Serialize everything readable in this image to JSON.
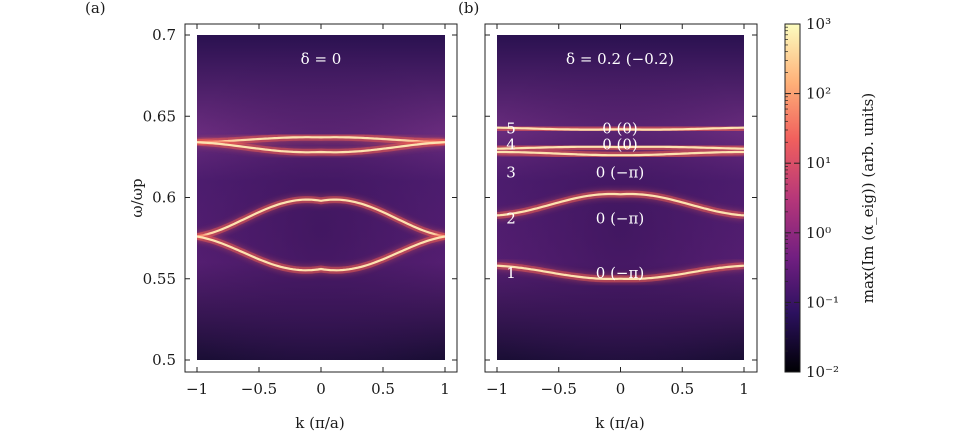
{
  "chart_data": [
    {
      "type": "heatmap",
      "panel_label": "(a)",
      "annotation": "δ = 0",
      "xlabel": "k (π/a)",
      "ylabel": "ω/ωp",
      "xlim": [
        -1,
        1
      ],
      "ylim": [
        0.5,
        0.7
      ],
      "xticks": [
        "−1",
        "−0.5",
        "0",
        "0.5",
        "1"
      ],
      "yticks": [
        "0.5",
        "0.55",
        "0.6",
        "0.65",
        "0.7"
      ],
      "bands": [
        {
          "name": "",
          "x": [
            -1,
            -0.5,
            0,
            0.5,
            1
          ],
          "y": [
            0.576,
            0.591,
            0.598,
            0.591,
            0.576
          ]
        },
        {
          "name": "",
          "x": [
            -1,
            -0.5,
            0,
            0.5,
            1
          ],
          "y": [
            0.576,
            0.562,
            0.556,
            0.562,
            0.576
          ]
        },
        {
          "name": "",
          "x": [
            -1,
            -0.5,
            0,
            0.5,
            1
          ],
          "y": [
            0.634,
            0.636,
            0.637,
            0.636,
            0.634
          ]
        },
        {
          "name": "",
          "x": [
            -1,
            -0.5,
            0,
            0.5,
            1
          ],
          "y": [
            0.634,
            0.63,
            0.628,
            0.63,
            0.634
          ]
        }
      ]
    },
    {
      "type": "heatmap",
      "panel_label": "(b)",
      "annotation": "δ = 0.2 (−0.2)",
      "xlabel": "k (π/a)",
      "ylabel": "",
      "xlim": [
        -1,
        1
      ],
      "ylim": [
        0.5,
        0.7
      ],
      "xticks": [
        "−1",
        "−0.5",
        "0",
        "0.5",
        "1"
      ],
      "yticks": [],
      "bands": [
        {
          "name": "1",
          "phase": "0 (−π)",
          "x": [
            -1,
            -0.5,
            0,
            0.5,
            1
          ],
          "y": [
            0.558,
            0.553,
            0.55,
            0.553,
            0.558
          ]
        },
        {
          "name": "2",
          "phase": "0 (−π)",
          "x": [
            -1,
            -0.5,
            0,
            0.5,
            1
          ],
          "y": [
            0.589,
            0.597,
            0.602,
            0.597,
            0.589
          ]
        },
        {
          "name": "3",
          "phase": "0 (−π)",
          "x": [
            -1,
            -0.5,
            0,
            0.5,
            1
          ],
          "y": [
            0.628,
            0.627,
            0.626,
            0.627,
            0.628
          ]
        },
        {
          "name": "4",
          "phase": "0 (0)",
          "x": [
            -1,
            -0.5,
            0,
            0.5,
            1
          ],
          "y": [
            0.63,
            0.631,
            0.631,
            0.631,
            0.63
          ]
        },
        {
          "name": "5",
          "phase": "0 (0)",
          "x": [
            -1,
            -0.5,
            0,
            0.5,
            1
          ],
          "y": [
            0.643,
            0.642,
            0.642,
            0.642,
            0.643
          ]
        }
      ]
    }
  ],
  "colorbar": {
    "label": "max(Im (α_eig)) (arb. units)",
    "scale": "log",
    "range": [
      0.01,
      1000
    ],
    "ticks": [
      "10⁻²",
      "10⁻¹",
      "10⁰",
      "10¹",
      "10²",
      "10³"
    ],
    "colors": [
      "#000004",
      "#2c115f",
      "#721f81",
      "#b73779",
      "#f1605d",
      "#feb078",
      "#fcfdbf"
    ]
  },
  "label_positions_3": {
    "row_label": "3",
    "phase_label": "0 (−π)"
  }
}
